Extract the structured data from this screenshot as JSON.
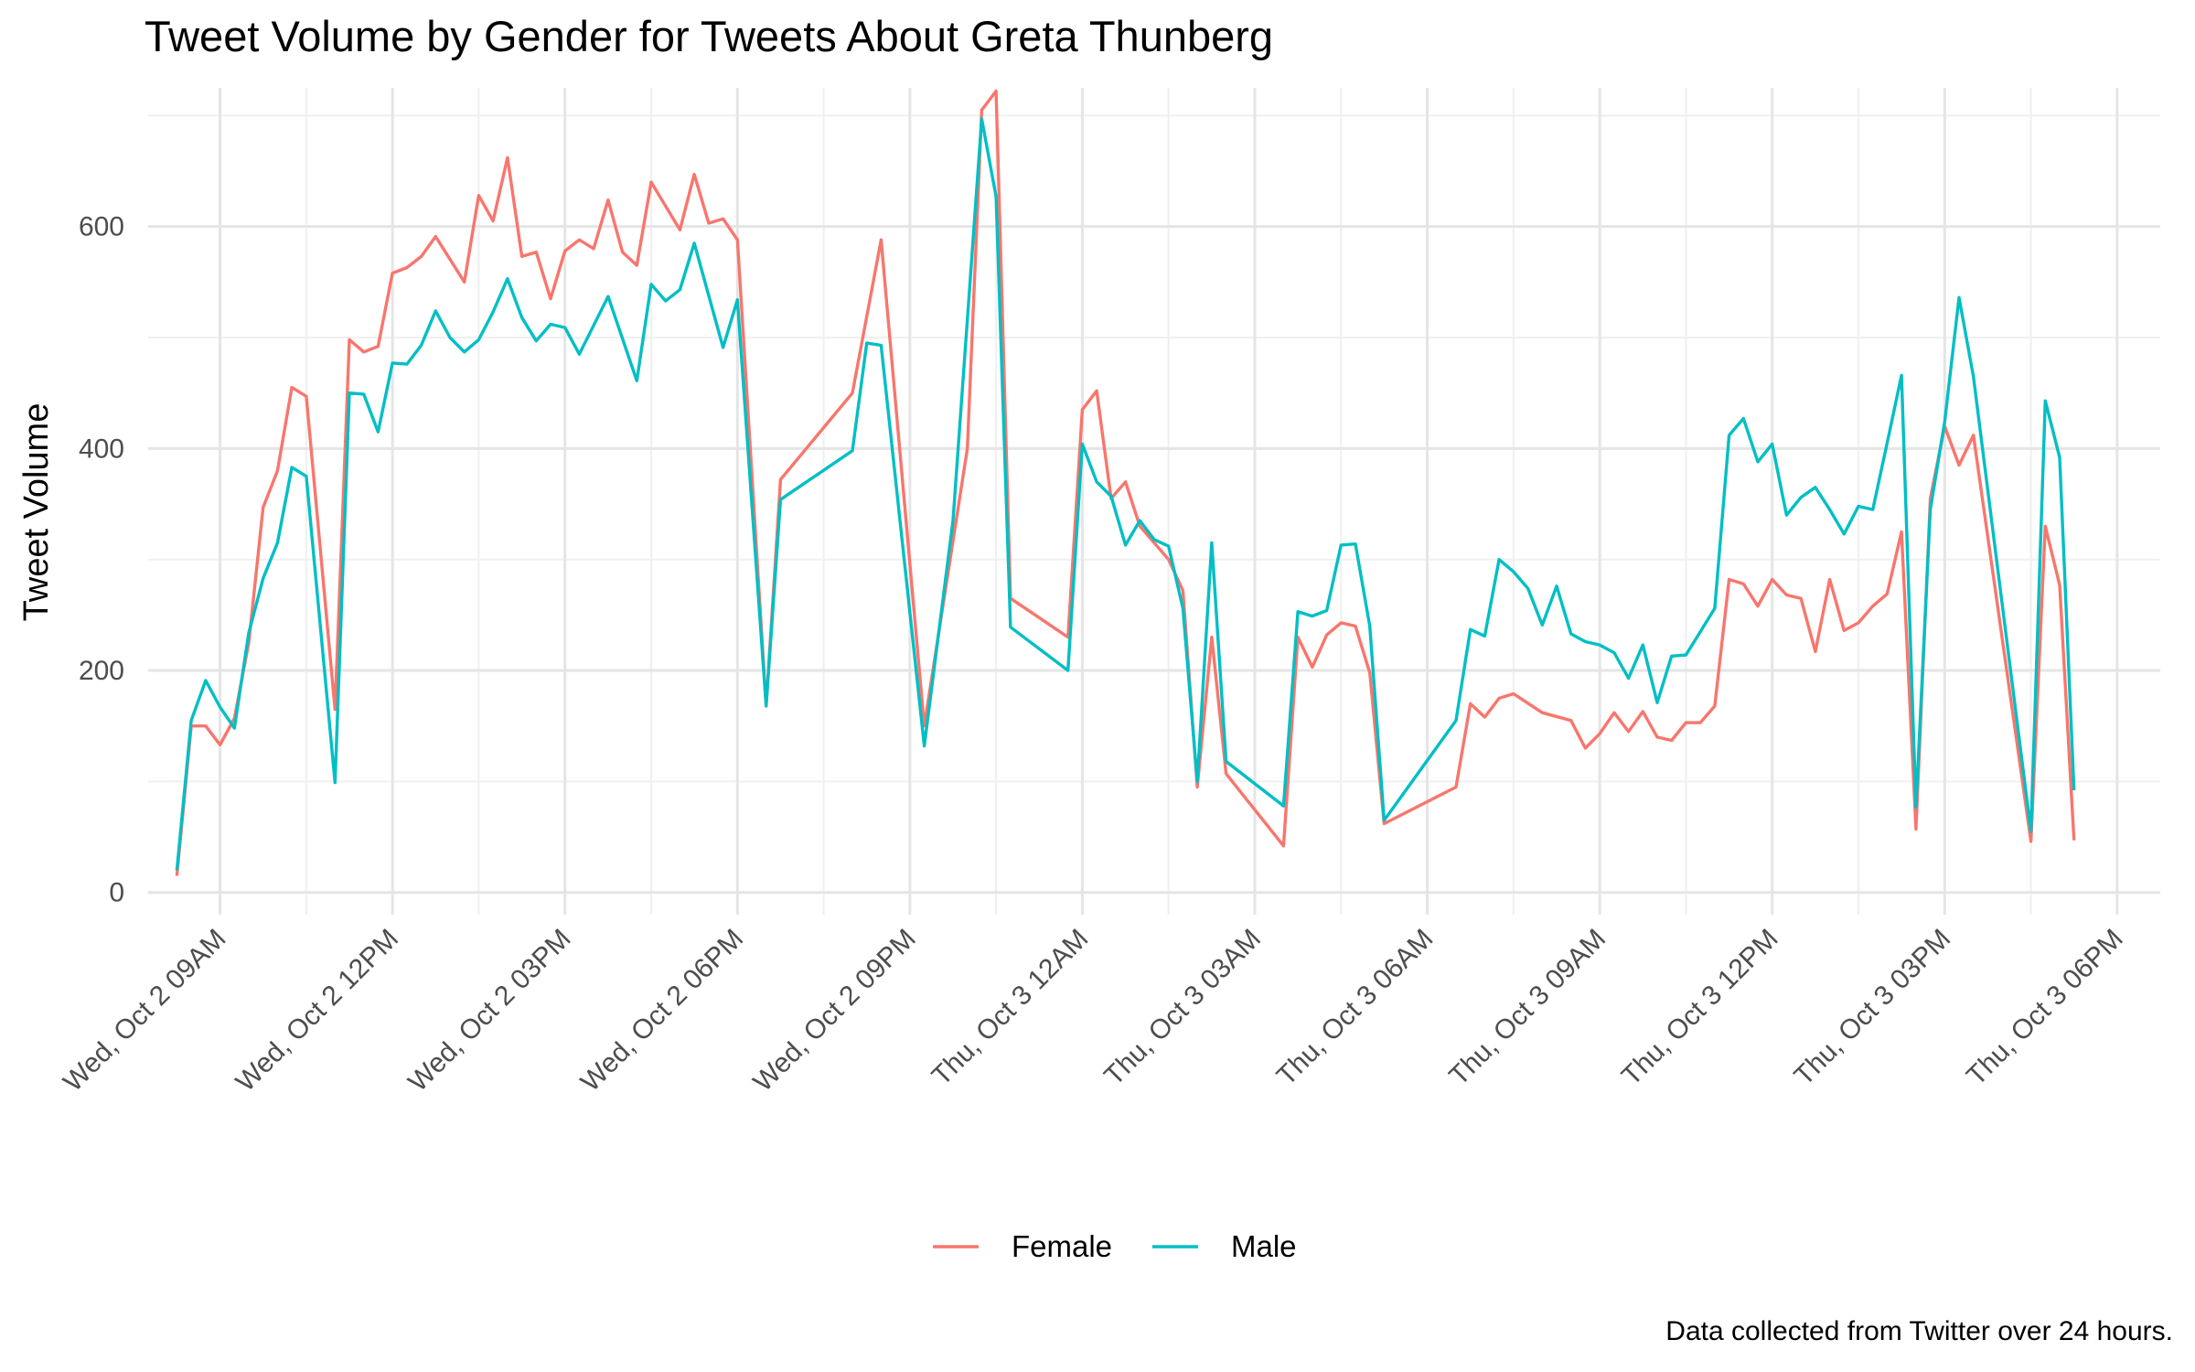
{
  "chart_data": {
    "type": "line",
    "title": "Tweet Volume by Gender for Tweets About Greta Thunberg",
    "ylabel": "Tweet Volume",
    "xlabel": "",
    "caption": "Data collected from Twitter over 24 hours.",
    "x_unit": "hours since Wed, Oct 2 12:00AM",
    "xlim": [
      7.75,
      42.75
    ],
    "ylim": [
      -20,
      725
    ],
    "x_ticks": [
      {
        "x": 9,
        "label": "Wed, Oct 2 09AM"
      },
      {
        "x": 12,
        "label": "Wed, Oct 2 12PM"
      },
      {
        "x": 15,
        "label": "Wed, Oct 2 03PM"
      },
      {
        "x": 18,
        "label": "Wed, Oct 2 06PM"
      },
      {
        "x": 21,
        "label": "Wed, Oct 2 09PM"
      },
      {
        "x": 24,
        "label": "Thu, Oct 3 12AM"
      },
      {
        "x": 27,
        "label": "Thu, Oct 3 03AM"
      },
      {
        "x": 30,
        "label": "Thu, Oct 3 06AM"
      },
      {
        "x": 33,
        "label": "Thu, Oct 3 09AM"
      },
      {
        "x": 36,
        "label": "Thu, Oct 3 12PM"
      },
      {
        "x": 39,
        "label": "Thu, Oct 3 03PM"
      },
      {
        "x": 42,
        "label": "Thu, Oct 3 06PM"
      }
    ],
    "y_ticks": [
      0,
      200,
      400,
      600
    ],
    "grid": true,
    "legend_position": "bottom",
    "series": [
      {
        "name": "Female",
        "color": "#F8766D",
        "points": [
          [
            8.25,
            15
          ],
          [
            8.5,
            150
          ],
          [
            8.75,
            150
          ],
          [
            9.0,
            133
          ],
          [
            9.25,
            157
          ],
          [
            9.5,
            225
          ],
          [
            9.75,
            347
          ],
          [
            10.0,
            380
          ],
          [
            10.25,
            455
          ],
          [
            10.5,
            447
          ],
          [
            11.0,
            165
          ],
          [
            11.25,
            498
          ],
          [
            11.5,
            487
          ],
          [
            11.75,
            492
          ],
          [
            12.0,
            558
          ],
          [
            12.25,
            563
          ],
          [
            12.5,
            573
          ],
          [
            12.75,
            591
          ],
          [
            13.25,
            550
          ],
          [
            13.5,
            628
          ],
          [
            13.75,
            605
          ],
          [
            14.0,
            662
          ],
          [
            14.25,
            573
          ],
          [
            14.5,
            577
          ],
          [
            14.75,
            535
          ],
          [
            15.0,
            578
          ],
          [
            15.25,
            588
          ],
          [
            15.5,
            580
          ],
          [
            15.75,
            624
          ],
          [
            16.0,
            577
          ],
          [
            16.25,
            565
          ],
          [
            16.5,
            640
          ],
          [
            17.0,
            597
          ],
          [
            17.25,
            647
          ],
          [
            17.5,
            603
          ],
          [
            17.75,
            607
          ],
          [
            18.0,
            588
          ],
          [
            18.5,
            168
          ],
          [
            18.75,
            372
          ],
          [
            20.0,
            450
          ],
          [
            20.5,
            588
          ],
          [
            21.25,
            150
          ],
          [
            22.0,
            400
          ],
          [
            22.25,
            705
          ],
          [
            22.5,
            722
          ],
          [
            22.75,
            265
          ],
          [
            23.75,
            230
          ],
          [
            24.0,
            435
          ],
          [
            24.25,
            452
          ],
          [
            24.5,
            355
          ],
          [
            24.75,
            370
          ],
          [
            25.0,
            330
          ],
          [
            25.5,
            300
          ],
          [
            25.75,
            272
          ],
          [
            26.0,
            95
          ],
          [
            26.25,
            230
          ],
          [
            26.5,
            107
          ],
          [
            27.5,
            42
          ],
          [
            27.75,
            230
          ],
          [
            28.0,
            203
          ],
          [
            28.25,
            232
          ],
          [
            28.5,
            243
          ],
          [
            28.75,
            240
          ],
          [
            29.0,
            198
          ],
          [
            29.25,
            62
          ],
          [
            30.5,
            95
          ],
          [
            30.75,
            170
          ],
          [
            31.0,
            158
          ],
          [
            31.25,
            175
          ],
          [
            31.5,
            179
          ],
          [
            32.0,
            162
          ],
          [
            32.5,
            155
          ],
          [
            32.75,
            130
          ],
          [
            33.0,
            143
          ],
          [
            33.25,
            162
          ],
          [
            33.5,
            145
          ],
          [
            33.75,
            163
          ],
          [
            34.0,
            140
          ],
          [
            34.25,
            137
          ],
          [
            34.5,
            153
          ],
          [
            34.75,
            153
          ],
          [
            35.0,
            168
          ],
          [
            35.25,
            282
          ],
          [
            35.5,
            278
          ],
          [
            35.75,
            258
          ],
          [
            36.0,
            282
          ],
          [
            36.25,
            268
          ],
          [
            36.5,
            265
          ],
          [
            36.75,
            217
          ],
          [
            37.0,
            282
          ],
          [
            37.25,
            236
          ],
          [
            37.5,
            243
          ],
          [
            37.75,
            258
          ],
          [
            38.0,
            269
          ],
          [
            38.25,
            325
          ],
          [
            38.5,
            57
          ],
          [
            38.75,
            355
          ],
          [
            39.0,
            420
          ],
          [
            39.25,
            385
          ],
          [
            39.5,
            412
          ],
          [
            40.5,
            46
          ],
          [
            40.75,
            330
          ],
          [
            41.0,
            277
          ],
          [
            41.25,
            47
          ]
        ]
      },
      {
        "name": "Male",
        "color": "#00BFC4",
        "points": [
          [
            8.25,
            20
          ],
          [
            8.5,
            155
          ],
          [
            8.75,
            191
          ],
          [
            9.0,
            167
          ],
          [
            9.25,
            148
          ],
          [
            9.5,
            234
          ],
          [
            9.75,
            283
          ],
          [
            10.0,
            315
          ],
          [
            10.25,
            383
          ],
          [
            10.5,
            375
          ],
          [
            11.0,
            99
          ],
          [
            11.25,
            450
          ],
          [
            11.5,
            449
          ],
          [
            11.75,
            415
          ],
          [
            12.0,
            477
          ],
          [
            12.25,
            476
          ],
          [
            12.5,
            493
          ],
          [
            12.75,
            524
          ],
          [
            13.0,
            500
          ],
          [
            13.25,
            487
          ],
          [
            13.5,
            498
          ],
          [
            13.75,
            523
          ],
          [
            14.0,
            553
          ],
          [
            14.25,
            518
          ],
          [
            14.5,
            497
          ],
          [
            14.75,
            512
          ],
          [
            15.0,
            509
          ],
          [
            15.25,
            485
          ],
          [
            15.75,
            537
          ],
          [
            16.25,
            461
          ],
          [
            16.5,
            548
          ],
          [
            16.75,
            533
          ],
          [
            17.0,
            543
          ],
          [
            17.25,
            585
          ],
          [
            17.75,
            491
          ],
          [
            18.0,
            534
          ],
          [
            18.5,
            168
          ],
          [
            18.75,
            354
          ],
          [
            20.0,
            398
          ],
          [
            20.25,
            495
          ],
          [
            20.5,
            493
          ],
          [
            21.25,
            132
          ],
          [
            21.75,
            335
          ],
          [
            22.25,
            697
          ],
          [
            22.5,
            627
          ],
          [
            22.75,
            239
          ],
          [
            23.75,
            200
          ],
          [
            24.0,
            404
          ],
          [
            24.25,
            370
          ],
          [
            24.5,
            357
          ],
          [
            24.75,
            313
          ],
          [
            25.0,
            335
          ],
          [
            25.25,
            318
          ],
          [
            25.5,
            312
          ],
          [
            25.75,
            256
          ],
          [
            26.0,
            100
          ],
          [
            26.25,
            315
          ],
          [
            26.5,
            118
          ],
          [
            27.5,
            78
          ],
          [
            27.75,
            253
          ],
          [
            28.0,
            249
          ],
          [
            28.25,
            254
          ],
          [
            28.5,
            313
          ],
          [
            28.75,
            314
          ],
          [
            29.0,
            240
          ],
          [
            29.25,
            65
          ],
          [
            30.5,
            155
          ],
          [
            30.75,
            237
          ],
          [
            31.0,
            231
          ],
          [
            31.25,
            300
          ],
          [
            31.5,
            289
          ],
          [
            31.75,
            274
          ],
          [
            32.0,
            241
          ],
          [
            32.25,
            276
          ],
          [
            32.5,
            233
          ],
          [
            32.75,
            226
          ],
          [
            33.0,
            223
          ],
          [
            33.25,
            216
          ],
          [
            33.5,
            193
          ],
          [
            33.75,
            223
          ],
          [
            34.0,
            171
          ],
          [
            34.25,
            213
          ],
          [
            34.5,
            214
          ],
          [
            35.0,
            256
          ],
          [
            35.25,
            412
          ],
          [
            35.5,
            427
          ],
          [
            35.75,
            388
          ],
          [
            36.0,
            404
          ],
          [
            36.25,
            340
          ],
          [
            36.5,
            356
          ],
          [
            36.75,
            365
          ],
          [
            37.0,
            345
          ],
          [
            37.25,
            323
          ],
          [
            37.5,
            348
          ],
          [
            37.75,
            345
          ],
          [
            38.0,
            405
          ],
          [
            38.25,
            466
          ],
          [
            38.5,
            77
          ],
          [
            38.75,
            345
          ],
          [
            39.0,
            424
          ],
          [
            39.25,
            536
          ],
          [
            39.5,
            465
          ],
          [
            40.5,
            55
          ],
          [
            40.75,
            443
          ],
          [
            41.0,
            392
          ],
          [
            41.25,
            92
          ]
        ]
      }
    ]
  }
}
